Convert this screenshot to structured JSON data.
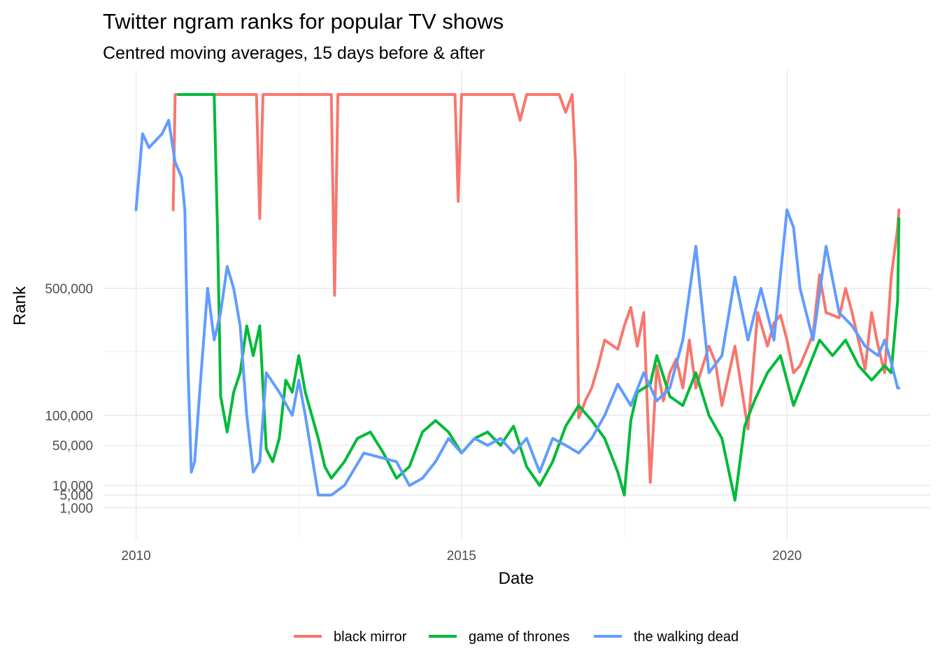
{
  "chart_data": {
    "type": "line",
    "title": "Twitter ngram ranks for popular TV shows",
    "subtitle": "Centred moving averages, 15 days before & after",
    "xlabel": "Date",
    "ylabel": "Rank",
    "x_ticks": [
      "2010",
      "2015",
      "2020"
    ],
    "x_tick_values": [
      2010,
      2015,
      2020
    ],
    "xlim": [
      2009.5,
      2022.2
    ],
    "y_ticks": [
      "1,000",
      "5,000",
      "10,000",
      "50,000",
      "100,000",
      "500,000"
    ],
    "y_tick_values": [
      1000,
      5000,
      10000,
      50000,
      100000,
      500000
    ],
    "y_scale": "sqrt",
    "ylim": [
      0,
      1850000
    ],
    "grid": true,
    "legend_position": "bottom",
    "series": [
      {
        "name": "black mirror",
        "color": "#F8766D",
        "x": [
          2010.57,
          2010.6,
          2010.65,
          2011.0,
          2011.5,
          2011.85,
          2011.9,
          2011.95,
          2012.0,
          2012.5,
          2013.0,
          2013.05,
          2013.1,
          2013.2,
          2013.5,
          2014.0,
          2014.5,
          2014.9,
          2014.95,
          2015.0,
          2015.1,
          2015.2,
          2015.5,
          2015.8,
          2015.9,
          2016.0,
          2016.3,
          2016.5,
          2016.6,
          2016.7,
          2016.75,
          2016.8,
          2016.85,
          2016.9,
          2017.0,
          2017.1,
          2017.2,
          2017.4,
          2017.5,
          2017.6,
          2017.7,
          2017.8,
          2017.9,
          2018.0,
          2018.1,
          2018.2,
          2018.3,
          2018.4,
          2018.5,
          2018.6,
          2018.8,
          2018.9,
          2019.0,
          2019.2,
          2019.4,
          2019.55,
          2019.7,
          2019.8,
          2019.9,
          2020.0,
          2020.1,
          2020.2,
          2020.4,
          2020.5,
          2020.6,
          2020.8,
          2020.9,
          2021.0,
          2021.2,
          2021.3,
          2021.4,
          2021.5,
          2021.6,
          2021.7,
          2021.72
        ],
        "values": [
          900000,
          1700000,
          1700000,
          1700000,
          1700000,
          1700000,
          850000,
          1700000,
          1700000,
          1700000,
          1700000,
          470000,
          1700000,
          1700000,
          1700000,
          1700000,
          1700000,
          1700000,
          950000,
          1700000,
          1700000,
          1700000,
          1700000,
          1700000,
          1500000,
          1700000,
          1700000,
          1700000,
          1560000,
          1700000,
          1200000,
          95000,
          110000,
          130000,
          160000,
          220000,
          300000,
          270000,
          350000,
          420000,
          280000,
          400000,
          12000,
          220000,
          130000,
          200000,
          240000,
          160000,
          300000,
          160000,
          280000,
          230000,
          120000,
          280000,
          75000,
          400000,
          280000,
          360000,
          390000,
          300000,
          200000,
          220000,
          320000,
          560000,
          400000,
          380000,
          500000,
          400000,
          210000,
          400000,
          280000,
          200000,
          550000,
          800000,
          900000
        ]
      },
      {
        "name": "game of thrones",
        "color": "#00BA38",
        "x": [
          2010.65,
          2010.8,
          2011.0,
          2011.2,
          2011.25,
          2011.3,
          2011.4,
          2011.5,
          2011.6,
          2011.7,
          2011.8,
          2011.9,
          2012.0,
          2012.1,
          2012.2,
          2012.3,
          2012.4,
          2012.5,
          2012.6,
          2012.7,
          2012.8,
          2012.9,
          2013.0,
          2013.2,
          2013.4,
          2013.6,
          2013.8,
          2014.0,
          2014.2,
          2014.4,
          2014.6,
          2014.8,
          2015.0,
          2015.2,
          2015.4,
          2015.6,
          2015.8,
          2016.0,
          2016.2,
          2016.4,
          2016.6,
          2016.8,
          2017.0,
          2017.2,
          2017.4,
          2017.5,
          2017.6,
          2017.7,
          2017.9,
          2018.0,
          2018.2,
          2018.4,
          2018.6,
          2018.8,
          2019.0,
          2019.2,
          2019.35,
          2019.5,
          2019.7,
          2019.9,
          2020.1,
          2020.3,
          2020.5,
          2020.7,
          2020.9,
          2021.1,
          2021.3,
          2021.5,
          2021.6,
          2021.7,
          2021.72
        ],
        "values": [
          1700000,
          1700000,
          1700000,
          1700000,
          800000,
          140000,
          70000,
          150000,
          200000,
          350000,
          250000,
          350000,
          45000,
          30000,
          60000,
          180000,
          150000,
          250000,
          150000,
          100000,
          60000,
          25000,
          15000,
          30000,
          60000,
          70000,
          40000,
          15000,
          25000,
          70000,
          90000,
          70000,
          40000,
          60000,
          70000,
          50000,
          80000,
          25000,
          10000,
          30000,
          80000,
          120000,
          90000,
          60000,
          20000,
          5000,
          90000,
          150000,
          170000,
          250000,
          140000,
          120000,
          200000,
          100000,
          60000,
          3000,
          80000,
          130000,
          200000,
          250000,
          120000,
          200000,
          300000,
          250000,
          300000,
          220000,
          180000,
          220000,
          200000,
          450000,
          850000
        ]
      },
      {
        "name": "the walking dead",
        "color": "#619CFF",
        "x": [
          2010.0,
          2010.1,
          2010.2,
          2010.3,
          2010.4,
          2010.5,
          2010.6,
          2010.7,
          2010.75,
          2010.8,
          2010.85,
          2010.9,
          2011.0,
          2011.1,
          2011.2,
          2011.3,
          2011.4,
          2011.5,
          2011.6,
          2011.7,
          2011.8,
          2011.9,
          2012.0,
          2012.2,
          2012.4,
          2012.5,
          2012.6,
          2012.8,
          2013.0,
          2013.2,
          2013.5,
          2014.0,
          2014.2,
          2014.4,
          2014.6,
          2014.8,
          2015.0,
          2015.2,
          2015.4,
          2015.6,
          2015.8,
          2016.0,
          2016.2,
          2016.4,
          2016.6,
          2016.8,
          2017.0,
          2017.2,
          2017.4,
          2017.6,
          2017.8,
          2018.0,
          2018.2,
          2018.4,
          2018.6,
          2018.8,
          2019.0,
          2019.2,
          2019.4,
          2019.6,
          2019.8,
          2020.0,
          2020.1,
          2020.2,
          2020.4,
          2020.6,
          2020.8,
          2021.0,
          2021.2,
          2021.4,
          2021.5,
          2021.6,
          2021.7,
          2021.72
        ],
        "values": [
          900000,
          1400000,
          1300000,
          1350000,
          1400000,
          1500000,
          1200000,
          1100000,
          900000,
          200000,
          20000,
          30000,
          200000,
          500000,
          300000,
          400000,
          600000,
          500000,
          350000,
          100000,
          20000,
          30000,
          200000,
          150000,
          100000,
          180000,
          100000,
          5000,
          5000,
          10000,
          40000,
          30000,
          10000,
          15000,
          30000,
          60000,
          40000,
          60000,
          50000,
          60000,
          40000,
          60000,
          20000,
          60000,
          50000,
          40000,
          60000,
          100000,
          170000,
          120000,
          200000,
          130000,
          160000,
          300000,
          700000,
          200000,
          250000,
          550000,
          300000,
          500000,
          300000,
          900000,
          800000,
          500000,
          300000,
          700000,
          400000,
          350000,
          280000,
          250000,
          300000,
          230000,
          160000,
          160000
        ]
      }
    ]
  }
}
